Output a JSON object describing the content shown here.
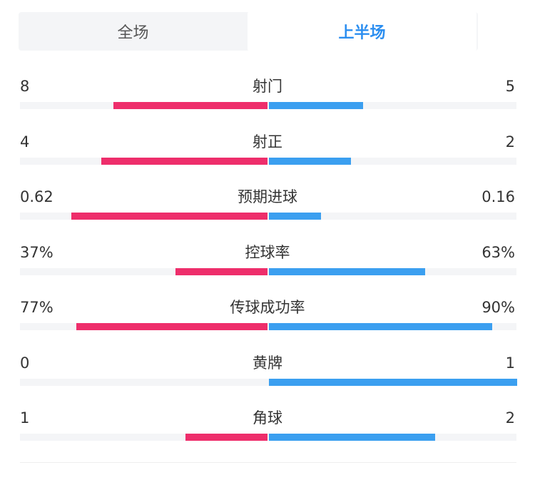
{
  "tabs": [
    {
      "label": "全场",
      "active": false
    },
    {
      "label": "上半场",
      "active": true
    }
  ],
  "colors": {
    "home": "#ee2e6b",
    "away": "#3b9ff0",
    "active_tab": "#2b8ef0"
  },
  "stats": [
    {
      "name": "射门",
      "left": "8",
      "right": "5",
      "left_frac": 0.62,
      "right_frac": 0.38
    },
    {
      "name": "射正",
      "left": "4",
      "right": "2",
      "left_frac": 0.67,
      "right_frac": 0.33
    },
    {
      "name": "预期进球",
      "left": "0.62",
      "right": "0.16",
      "left_frac": 0.79,
      "right_frac": 0.21
    },
    {
      "name": "控球率",
      "left": "37%",
      "right": "63%",
      "left_frac": 0.37,
      "right_frac": 0.63
    },
    {
      "name": "传球成功率",
      "left": "77%",
      "right": "90%",
      "left_frac": 0.77,
      "right_frac": 0.9
    },
    {
      "name": "黄牌",
      "left": "0",
      "right": "1",
      "left_frac": 0.0,
      "right_frac": 1.0
    },
    {
      "name": "角球",
      "left": "1",
      "right": "2",
      "left_frac": 0.33,
      "right_frac": 0.67
    }
  ]
}
